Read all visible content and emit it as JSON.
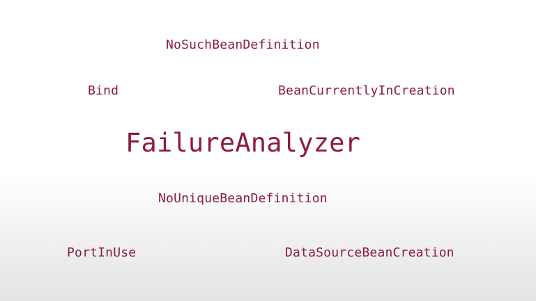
{
  "slide": {
    "title": "FailureAnalyzer",
    "analyzers": [
      "NoSuchBeanDefinition",
      "Bind",
      "BeanCurrentlyInCreation",
      "NoUniqueBeanDefinition",
      "PortInUse",
      "DataSourceBeanCreation"
    ]
  },
  "colors": {
    "text": "#8b1a45",
    "background_top": "#ffffff",
    "background_bottom": "#e4e4e4"
  }
}
